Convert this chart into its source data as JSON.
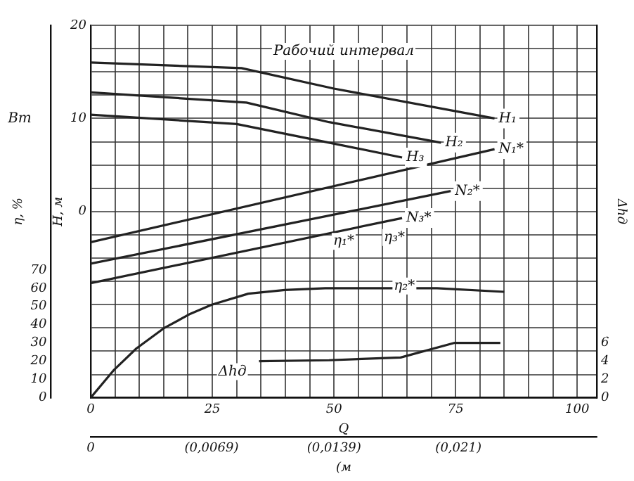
{
  "chart_data": {
    "type": "line",
    "ylabel": "H, м",
    "y2label": "η, %",
    "y3label": "Δhд",
    "xlabel": "Q",
    "x2label": "(м",
    "xlim": [
      0,
      104
    ],
    "xticks": [
      0,
      {
        "value": 5,
        "label": null
      },
      {
        "value": 10,
        "label": null
      },
      {
        "value": 15,
        "label": null
      },
      {
        "value": 20,
        "label": null
      },
      25,
      {
        "value": 30,
        "label": null
      },
      {
        "value": 35,
        "label": null
      },
      {
        "value": 40,
        "label": null
      },
      {
        "value": 45,
        "label": null
      },
      50,
      {
        "value": 55,
        "label": null
      },
      {
        "value": 60,
        "label": null
      },
      {
        "value": 65,
        "label": null
      },
      {
        "value": 70,
        "label": null
      },
      75,
      {
        "value": 80,
        "label": null
      },
      {
        "value": 85,
        "label": null
      },
      {
        "value": 90,
        "label": null
      },
      {
        "value": 95,
        "label": null
      },
      100
    ],
    "x2lim": [
      0,
      0.0289
    ],
    "x2ticks": [
      0,
      {
        "value": 0.0069,
        "label": "(0,0069)"
      },
      {
        "value": 0.0139,
        "label": "(0,0139)"
      },
      {
        "value": 0.021,
        "label": "(0,021)"
      }
    ],
    "ylim": [
      -20,
      20
    ],
    "yticks": [
      {
        "value": -20,
        "label": null
      },
      {
        "value": -17.5,
        "label": null
      },
      {
        "value": -15,
        "label": null
      },
      {
        "value": -12.5,
        "label": null
      },
      {
        "value": -10,
        "label": null
      },
      {
        "value": -7.5,
        "label": null
      },
      {
        "value": -5,
        "label": null
      },
      {
        "value": -2.5,
        "label": null
      },
      0,
      {
        "value": 2.5,
        "label": null
      },
      {
        "value": 5,
        "label": null
      },
      {
        "value": 7.5,
        "label": null
      },
      10,
      {
        "value": 12.5,
        "label": null
      },
      {
        "value": 15,
        "label": null
      },
      {
        "value": 17.5,
        "label": null
      },
      20
    ],
    "y2lim": [
      0,
      204
    ],
    "y2ticks": [
      0,
      10,
      20,
      30,
      40,
      50,
      60,
      70
    ],
    "y3lim": [
      0,
      40.7
    ],
    "y3ticks": [
      0,
      2,
      4,
      6
    ],
    "grid": true,
    "legend": false,
    "marker": "none",
    "line_style": "solid",
    "annotations": [
      "Рабочий интервал",
      "Вт",
      "η₁*",
      "η₂*",
      "η₃*",
      "Δhд"
    ],
    "series": [
      {
        "name": "H₁",
        "color": "#222222",
        "x": [
          0,
          31,
          50,
          83
        ],
        "values": [
          16.0,
          15.4,
          13.2,
          10.0
        ]
      },
      {
        "name": "H₂",
        "color": "#222222",
        "x": [
          0,
          32,
          49,
          72
        ],
        "values": [
          12.8,
          11.7,
          9.6,
          7.4
        ]
      },
      {
        "name": "H₃",
        "color": "#222222",
        "x": [
          0,
          30,
          49,
          64
        ],
        "values": [
          10.4,
          9.4,
          7.4,
          5.8
        ]
      },
      {
        "name": "N₁*",
        "color": "#222222",
        "x": [
          0,
          83
        ],
        "values": [
          -3.3,
          6.7
        ]
      },
      {
        "name": "N₂*",
        "color": "#222222",
        "x": [
          0,
          74
        ],
        "values": [
          -5.6,
          2.2
        ]
      },
      {
        "name": "N₃*",
        "color": "#222222",
        "x": [
          0,
          64
        ],
        "values": [
          -7.7,
          -0.7
        ]
      },
      {
        "color": "#222222",
        "axis": "y2",
        "x": [
          0,
          4.7,
          9.4,
          15,
          20.5,
          24.9,
          32.4,
          39.9,
          48.2,
          60.1,
          71.2,
          85
        ],
        "values": [
          0,
          15,
          27,
          38,
          46,
          51,
          57,
          59,
          60,
          60,
          60,
          58
        ]
      },
      {
        "color": "#222222",
        "axis": "y3",
        "x": [
          34.6,
          49,
          63.7,
          74.8,
          84.2
        ],
        "values": [
          4.0,
          4.1,
          4.4,
          6.0,
          6.0
        ]
      }
    ]
  }
}
